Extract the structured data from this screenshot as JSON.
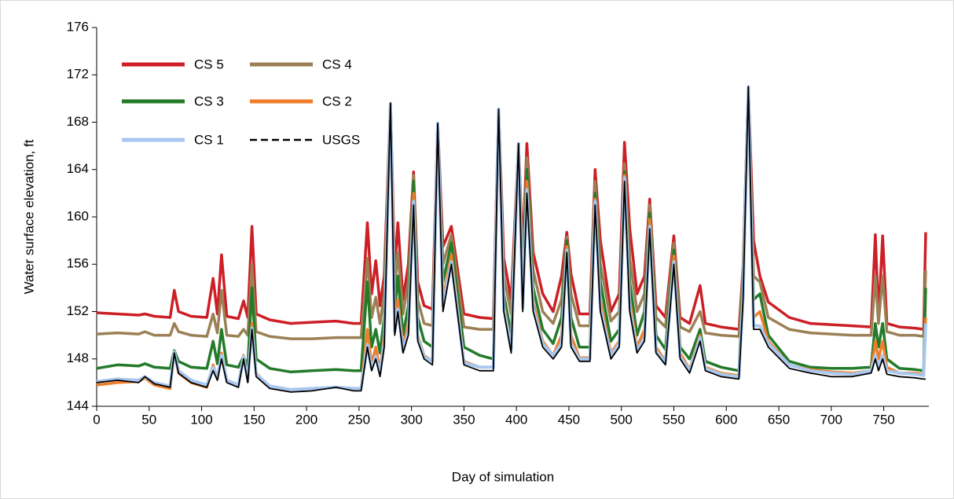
{
  "chart_data": {
    "type": "line",
    "x_label": "Day of simulation",
    "y_label": "Water surface elevation, ft",
    "xlim": [
      0,
      793
    ],
    "xticks": [
      0,
      50,
      100,
      150,
      200,
      250,
      300,
      350,
      400,
      450,
      500,
      550,
      600,
      650,
      700,
      750
    ],
    "ylim": [
      144,
      176
    ],
    "yticks": [
      144,
      148,
      152,
      156,
      160,
      164,
      168,
      172,
      176
    ],
    "legend": "top-left",
    "x": [
      0,
      20,
      40,
      46,
      55,
      70,
      74,
      78,
      90,
      105,
      111,
      115,
      119,
      124,
      135,
      140,
      144,
      148,
      152,
      165,
      185,
      205,
      228,
      245,
      252,
      258,
      262,
      266,
      270,
      274,
      280,
      284,
      287,
      292,
      297,
      302,
      306,
      312,
      320,
      325,
      330,
      338,
      350,
      365,
      378,
      383,
      388,
      395,
      402,
      406,
      410,
      416,
      425,
      435,
      443,
      448,
      452,
      460,
      470,
      475,
      480,
      490,
      498,
      503,
      508,
      515,
      522,
      527,
      533,
      542,
      550,
      556,
      565,
      575,
      580,
      595,
      612,
      616,
      621,
      626,
      632,
      640,
      660,
      680,
      700,
      720,
      738,
      742,
      745,
      749,
      753,
      765,
      780,
      788,
      790
    ],
    "series": [
      {
        "name": "CS 5",
        "color": "#cc1f26",
        "style": "solid",
        "values": [
          151.9,
          151.8,
          151.7,
          151.8,
          151.6,
          151.5,
          153.8,
          152.0,
          151.6,
          151.5,
          154.8,
          151.8,
          156.8,
          151.6,
          151.4,
          152.9,
          151.5,
          159.2,
          151.8,
          151.3,
          151.0,
          151.1,
          151.2,
          151.0,
          151.0,
          159.5,
          153.5,
          156.3,
          152.5,
          155.0,
          169.6,
          155.5,
          159.5,
          153.0,
          156.0,
          163.8,
          154.5,
          152.5,
          152.2,
          167.9,
          157.5,
          159.2,
          151.8,
          151.5,
          151.4,
          169.1,
          156.5,
          153.0,
          166.2,
          157.0,
          166.2,
          157.0,
          153.5,
          152.0,
          155.0,
          158.7,
          155.2,
          151.8,
          151.8,
          164.0,
          158.0,
          152.0,
          153.5,
          166.3,
          159.0,
          153.5,
          155.0,
          161.5,
          152.5,
          151.5,
          158.4,
          151.5,
          151.0,
          154.2,
          151.0,
          150.7,
          150.5,
          155.7,
          171.0,
          158.0,
          155.0,
          152.8,
          151.5,
          151.0,
          150.9,
          150.8,
          150.7,
          158.5,
          151.5,
          158.4,
          151.0,
          150.7,
          150.6,
          150.5,
          158.7
        ]
      },
      {
        "name": "CS 4",
        "color": "#9c8055",
        "style": "solid",
        "values": [
          150.1,
          150.2,
          150.1,
          150.3,
          150.0,
          150.0,
          151.0,
          150.3,
          150.0,
          149.9,
          151.8,
          150.2,
          153.8,
          150.0,
          149.9,
          150.5,
          150.0,
          156.0,
          150.3,
          149.9,
          149.7,
          149.7,
          149.8,
          149.8,
          149.8,
          156.5,
          151.5,
          153.2,
          151.0,
          153.5,
          169.6,
          154.0,
          157.0,
          151.8,
          154.5,
          163.5,
          153.0,
          151.0,
          150.8,
          167.9,
          156.0,
          158.5,
          150.7,
          150.5,
          150.5,
          169.1,
          155.0,
          151.8,
          166.2,
          155.5,
          165.0,
          155.5,
          152.0,
          151.0,
          153.0,
          158.3,
          153.5,
          150.8,
          150.8,
          163.0,
          156.0,
          151.2,
          152.0,
          164.5,
          156.5,
          152.0,
          153.5,
          161.0,
          151.5,
          150.7,
          157.8,
          150.7,
          150.3,
          152.0,
          150.2,
          150.0,
          149.9,
          155.3,
          171.0,
          155.0,
          154.5,
          151.5,
          150.5,
          150.2,
          150.1,
          150.0,
          150.0,
          155.0,
          151.0,
          155.0,
          150.3,
          150.0,
          150.0,
          149.9,
          155.5
        ]
      },
      {
        "name": "CS 3",
        "color": "#237b2a",
        "style": "solid",
        "values": [
          147.2,
          147.5,
          147.4,
          147.6,
          147.3,
          147.2,
          148.7,
          147.8,
          147.3,
          147.2,
          149.5,
          147.6,
          150.5,
          147.5,
          147.3,
          148.2,
          147.4,
          154.0,
          148.0,
          147.2,
          146.9,
          147.0,
          147.1,
          147.0,
          147.0,
          154.5,
          149.0,
          150.5,
          148.5,
          151.5,
          169.6,
          152.0,
          155.0,
          150.0,
          152.5,
          163.0,
          151.5,
          149.5,
          149.0,
          167.9,
          154.5,
          157.8,
          149.0,
          148.3,
          148.0,
          169.1,
          153.5,
          150.0,
          166.2,
          154.0,
          164.0,
          154.0,
          150.5,
          149.3,
          151.5,
          158.0,
          151.5,
          149.0,
          149.0,
          162.0,
          154.5,
          149.5,
          150.5,
          163.8,
          154.5,
          150.0,
          152.0,
          160.3,
          150.0,
          148.8,
          157.2,
          149.0,
          148.0,
          150.5,
          147.8,
          147.3,
          147.0,
          154.8,
          171.0,
          153.0,
          153.5,
          150.0,
          147.8,
          147.3,
          147.2,
          147.2,
          147.3,
          151.0,
          149.0,
          151.0,
          148.0,
          147.2,
          147.1,
          147.0,
          154.0
        ]
      },
      {
        "name": "CS 2",
        "color": "#f07d2a",
        "style": "solid",
        "values": [
          145.8,
          146.0,
          146.1,
          146.4,
          145.8,
          145.5,
          148.5,
          146.8,
          146.0,
          145.6,
          147.5,
          146.3,
          148.5,
          146.1,
          145.7,
          148.3,
          146.1,
          151.0,
          146.8,
          145.6,
          145.4,
          145.5,
          145.6,
          145.5,
          145.5,
          150.5,
          147.5,
          149.0,
          147.0,
          150.0,
          169.6,
          150.8,
          153.0,
          149.0,
          151.0,
          162.0,
          150.0,
          148.3,
          147.8,
          167.9,
          153.0,
          156.8,
          147.8,
          147.3,
          147.3,
          169.1,
          152.6,
          149.0,
          166.2,
          152.8,
          163.0,
          152.8,
          149.5,
          148.3,
          150.0,
          157.5,
          150.0,
          148.1,
          148.1,
          161.5,
          153.0,
          148.5,
          149.5,
          163.5,
          153.0,
          149.0,
          150.5,
          159.8,
          149.0,
          147.8,
          156.7,
          148.5,
          147.1,
          150.0,
          147.3,
          146.8,
          146.6,
          154.0,
          171.0,
          151.5,
          152.0,
          149.5,
          147.5,
          147.1,
          146.9,
          146.8,
          147.0,
          149.5,
          148.0,
          149.5,
          147.3,
          146.8,
          146.8,
          146.7,
          151.5
        ]
      },
      {
        "name": "CS 1",
        "color": "#a9c8ef",
        "style": "solid",
        "values": [
          146.1,
          146.3,
          146.2,
          146.5,
          146.0,
          145.7,
          148.6,
          147.0,
          146.2,
          145.8,
          147.3,
          146.4,
          148.3,
          146.2,
          145.8,
          148.2,
          146.2,
          150.6,
          146.7,
          145.7,
          145.4,
          145.5,
          145.6,
          145.5,
          145.5,
          149.2,
          147.2,
          148.2,
          146.8,
          149.3,
          169.6,
          150.3,
          152.2,
          148.7,
          150.3,
          161.3,
          149.8,
          148.2,
          147.8,
          167.9,
          152.5,
          156.2,
          147.7,
          147.3,
          147.3,
          169.1,
          152.3,
          148.8,
          166.2,
          152.3,
          162.3,
          152.3,
          149.3,
          148.3,
          149.3,
          157.2,
          149.3,
          148.0,
          148.0,
          161.3,
          152.3,
          148.3,
          149.3,
          163.3,
          152.3,
          148.7,
          149.8,
          159.2,
          148.7,
          147.7,
          156.2,
          148.2,
          147.0,
          149.8,
          147.2,
          146.7,
          146.5,
          153.3,
          171.0,
          150.8,
          150.8,
          149.3,
          147.5,
          147.0,
          146.8,
          146.7,
          147.0,
          148.3,
          147.3,
          148.3,
          147.0,
          146.8,
          146.7,
          146.6,
          151.0
        ]
      },
      {
        "name": "USGS",
        "color": "#000000",
        "style": "dashed",
        "values": [
          146.0,
          146.2,
          146.0,
          146.5,
          145.9,
          145.6,
          148.5,
          146.8,
          146.0,
          145.6,
          147.0,
          146.2,
          148.0,
          146.0,
          145.6,
          148.0,
          146.0,
          150.5,
          146.5,
          145.5,
          145.2,
          145.3,
          145.6,
          145.3,
          145.3,
          149.0,
          147.0,
          148.0,
          146.5,
          149.0,
          169.6,
          150.0,
          152.0,
          148.5,
          150.0,
          161.0,
          149.5,
          148.0,
          147.5,
          167.9,
          152.0,
          156.0,
          147.5,
          147.0,
          147.0,
          169.1,
          152.0,
          148.5,
          166.2,
          152.0,
          162.0,
          152.0,
          149.0,
          148.0,
          149.0,
          157.0,
          149.0,
          147.8,
          147.8,
          161.0,
          152.0,
          148.0,
          149.0,
          163.0,
          152.0,
          148.5,
          149.5,
          159.0,
          148.5,
          147.5,
          156.0,
          148.0,
          146.8,
          149.5,
          147.0,
          146.5,
          146.3,
          153.0,
          171.0,
          150.5,
          150.5,
          149.0,
          147.2,
          146.8,
          146.5,
          146.5,
          146.8,
          148.0,
          147.0,
          148.0,
          146.7,
          146.5,
          146.4,
          146.3,
          146.3
        ]
      }
    ]
  }
}
